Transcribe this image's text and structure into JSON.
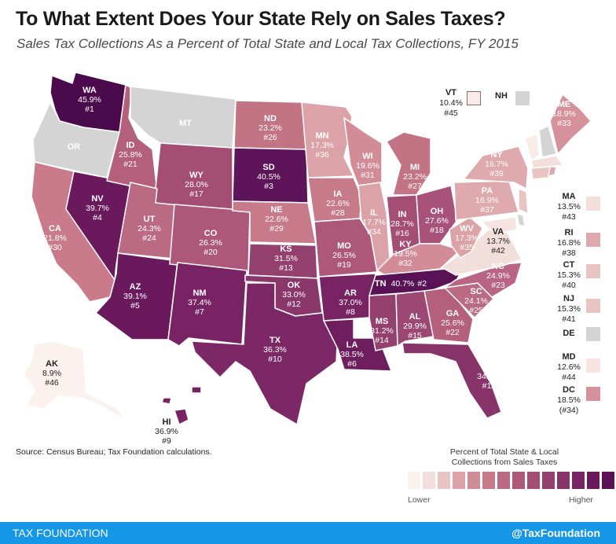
{
  "title": "To What Extent Does Your State Rely on Sales Taxes?",
  "subtitle": "Sales Tax Collections As a Percent of Total State and Local Tax Collections, FY 2015",
  "states": [
    {
      "abbr": "WA",
      "value": "45.9%",
      "rank": "#1",
      "fill": "#4a0a4c",
      "dark": true
    },
    {
      "abbr": "OR",
      "value": "",
      "rank": "",
      "fill": "#d4d4d4",
      "dark": true
    },
    {
      "abbr": "CA",
      "value": "21.8%",
      "rank": "#30",
      "fill": "#c97b8c",
      "dark": true
    },
    {
      "abbr": "NV",
      "value": "39.7%",
      "rank": "#4",
      "fill": "#6a1a5c",
      "dark": true
    },
    {
      "abbr": "ID",
      "value": "25.8%",
      "rank": "#21",
      "fill": "#b45f7c",
      "dark": true
    },
    {
      "abbr": "MT",
      "value": "",
      "rank": "",
      "fill": "#d4d4d4",
      "dark": true
    },
    {
      "abbr": "WY",
      "value": "28.0%",
      "rank": "#17",
      "fill": "#a44e74",
      "dark": true
    },
    {
      "abbr": "UT",
      "value": "24.3%",
      "rank": "#24",
      "fill": "#bb6a84",
      "dark": true
    },
    {
      "abbr": "AZ",
      "value": "39.1%",
      "rank": "#5",
      "fill": "#6a1a5c",
      "dark": true
    },
    {
      "abbr": "CO",
      "value": "26.3%",
      "rank": "#20",
      "fill": "#ad5878",
      "dark": true
    },
    {
      "abbr": "NM",
      "value": "37.4%",
      "rank": "#7",
      "fill": "#782464",
      "dark": true
    },
    {
      "abbr": "ND",
      "value": "23.2%",
      "rank": "#26",
      "fill": "#c27384",
      "dark": true
    },
    {
      "abbr": "SD",
      "value": "40.5%",
      "rank": "#3",
      "fill": "#5e1458",
      "dark": true
    },
    {
      "abbr": "NE",
      "value": "22.6%",
      "rank": "#29",
      "fill": "#c77a8a",
      "dark": true
    },
    {
      "abbr": "KS",
      "value": "31.5%",
      "rank": "#13",
      "fill": "#93406e",
      "dark": true
    },
    {
      "abbr": "OK",
      "value": "33.0%",
      "rank": "#12",
      "fill": "#8a386c",
      "dark": true
    },
    {
      "abbr": "TX",
      "value": "36.3%",
      "rank": "#10",
      "fill": "#7c2866",
      "dark": true
    },
    {
      "abbr": "MN",
      "value": "17.3%",
      "rank": "#36",
      "fill": "#dba2a8",
      "dark": true
    },
    {
      "abbr": "IA",
      "value": "22.6%",
      "rank": "#28",
      "fill": "#c77a8a",
      "dark": true
    },
    {
      "abbr": "MO",
      "value": "26.5%",
      "rank": "#19",
      "fill": "#ad5878",
      "dark": true
    },
    {
      "abbr": "AR",
      "value": "37.0%",
      "rank": "#8",
      "fill": "#782464",
      "dark": true
    },
    {
      "abbr": "LA",
      "value": "38.5%",
      "rank": "#6",
      "fill": "#6e1e5e",
      "dark": true
    },
    {
      "abbr": "WI",
      "value": "19.6%",
      "rank": "#31",
      "fill": "#d28c98",
      "dark": true
    },
    {
      "abbr": "IL",
      "value": "17.7%",
      "rank": "#34",
      "fill": "#dba2a8",
      "dark": true
    },
    {
      "abbr": "MI",
      "value": "23.2%",
      "rank": "#27",
      "fill": "#c27384",
      "dark": true
    },
    {
      "abbr": "IN",
      "value": "28.7%",
      "rank": "#16",
      "fill": "#a44e74",
      "dark": true
    },
    {
      "abbr": "OH",
      "value": "27.6%",
      "rank": "#18",
      "fill": "#a8527a",
      "dark": true
    },
    {
      "abbr": "KY",
      "value": "19.5%",
      "rank": "#32",
      "fill": "#d28c98",
      "dark": true
    },
    {
      "abbr": "TN",
      "value": "40.7%",
      "rank": "#2",
      "fill": "#5a1256",
      "dark": true
    },
    {
      "abbr": "MS",
      "value": "31.2%",
      "rank": "#14",
      "fill": "#93406e",
      "dark": true
    },
    {
      "abbr": "AL",
      "value": "29.9%",
      "rank": "#15",
      "fill": "#9c4872",
      "dark": true
    },
    {
      "abbr": "GA",
      "value": "25.6%",
      "rank": "#22",
      "fill": "#b45f7c",
      "dark": true
    },
    {
      "abbr": "FL",
      "value": "34.2%",
      "rank": "#11",
      "fill": "#86346a",
      "dark": true
    },
    {
      "abbr": "SC",
      "value": "24.1%",
      "rank": "#25",
      "fill": "#bb6a84",
      "dark": true
    },
    {
      "abbr": "NC",
      "value": "24.9%",
      "rank": "#23",
      "fill": "#b86482",
      "dark": true
    },
    {
      "abbr": "VA",
      "value": "13.7%",
      "rank": "#42",
      "fill": "#f2dedb",
      "dark": false
    },
    {
      "abbr": "WV",
      "value": "17.3%",
      "rank": "#35",
      "fill": "#dba2a8",
      "dark": true
    },
    {
      "abbr": "PA",
      "value": "16.9%",
      "rank": "#37",
      "fill": "#deaaae",
      "dark": true
    },
    {
      "abbr": "NY",
      "value": "16.7%",
      "rank": "#39",
      "fill": "#deaaae",
      "dark": true
    },
    {
      "abbr": "ME",
      "value": "18.9%",
      "rank": "#33",
      "fill": "#d5929c",
      "dark": true
    },
    {
      "abbr": "HI",
      "value": "36.9%",
      "rank": "#9",
      "fill": "#782464",
      "dark": false
    },
    {
      "abbr": "AK",
      "value": "8.9%",
      "rank": "#46",
      "fill": "#fbf1ee",
      "dark": false
    }
  ],
  "small_states": [
    {
      "abbr": "VT",
      "value": "10.4%",
      "rank": "#45",
      "fill": "#f8ece8"
    },
    {
      "abbr": "NH",
      "value": "",
      "rank": "",
      "fill": "#d4d4d4"
    },
    {
      "abbr": "MA",
      "value": "13.5%",
      "rank": "#43",
      "fill": "#f2dedb"
    },
    {
      "abbr": "RI",
      "value": "16.8%",
      "rank": "#38",
      "fill": "#deaaae"
    },
    {
      "abbr": "CT",
      "value": "15.3%",
      "rank": "#40",
      "fill": "#e8c4c2"
    },
    {
      "abbr": "NJ",
      "value": "15.3%",
      "rank": "#41",
      "fill": "#e8c4c2"
    },
    {
      "abbr": "DE",
      "value": "",
      "rank": "",
      "fill": "#d4d4d4"
    },
    {
      "abbr": "MD",
      "value": "12.6%",
      "rank": "#44",
      "fill": "#f5e4e1"
    },
    {
      "abbr": "DC",
      "value": "18.5%",
      "rank": "(#34)",
      "fill": "#d5929c"
    }
  ],
  "source": "Source: Census Bureau; Tax Foundation calculations.",
  "scale": {
    "title_line1": "Percent of Total State & Local",
    "title_line2": "Collections from Sales Taxes",
    "lower": "Lower",
    "higher": "Higher",
    "colors": [
      "#fbf1ee",
      "#f2dedb",
      "#e8c4c2",
      "#dba2a8",
      "#d28c98",
      "#c77a8a",
      "#bb6a84",
      "#ad5878",
      "#a44e74",
      "#93406e",
      "#86346a",
      "#782464",
      "#6a1a5c",
      "#5a1256",
      "#4a0a4c"
    ]
  },
  "footer": {
    "left": "TAX FOUNDATION",
    "right": "@TaxFoundation"
  }
}
